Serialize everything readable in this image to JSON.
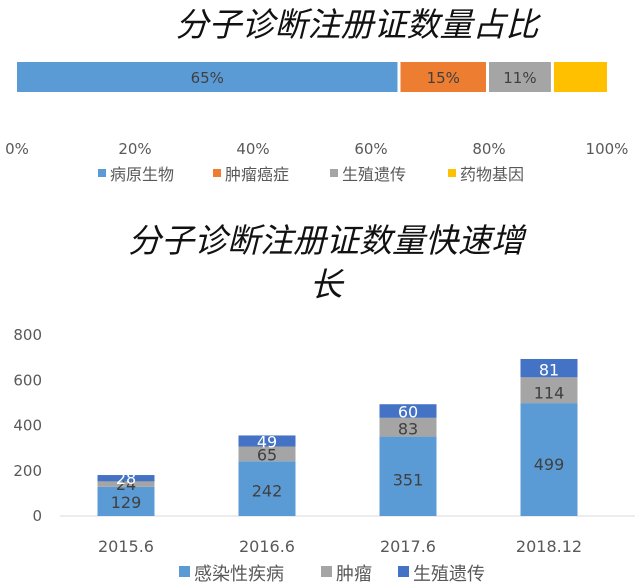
{
  "chart_data": [
    {
      "type": "bar",
      "orientation": "horizontal",
      "stacked": "percent",
      "title": "分子诊断注册证数量占比",
      "series": [
        {
          "name": "病原生物",
          "value": 65,
          "label": "65%",
          "color": "#5B9BD5"
        },
        {
          "name": "肿瘤癌症",
          "value": 15,
          "label": "15%",
          "color": "#ED7D31"
        },
        {
          "name": "生殖遗传",
          "value": 11,
          "label": "11%",
          "color": "#A5A5A5"
        },
        {
          "name": "药物基因",
          "value": 9,
          "label": "",
          "color": "#FFC000"
        }
      ],
      "xlim": [
        0,
        100
      ],
      "x_ticks": [
        "0%",
        "20%",
        "40%",
        "60%",
        "80%",
        "100%"
      ],
      "grid": false,
      "legend_position": "bottom"
    },
    {
      "type": "bar",
      "stacked": true,
      "title_lines": [
        "分子诊断注册证数量快速增",
        "长"
      ],
      "categories": [
        "2015.6",
        "2016.6",
        "2017.6",
        "2018.12"
      ],
      "series": [
        {
          "name": "感染性疾病",
          "values": [
            129,
            242,
            351,
            499
          ],
          "color": "#5B9BD5"
        },
        {
          "name": "肿瘤",
          "values": [
            24,
            65,
            83,
            114
          ],
          "color": "#A5A5A5"
        },
        {
          "name": "生殖遗传",
          "values": [
            28,
            49,
            60,
            81
          ],
          "color": "#4472C4"
        }
      ],
      "ylim": [
        0,
        800
      ],
      "y_ticks": [
        "0",
        "200",
        "400",
        "600",
        "800"
      ],
      "grid": false,
      "legend_position": "bottom"
    }
  ]
}
